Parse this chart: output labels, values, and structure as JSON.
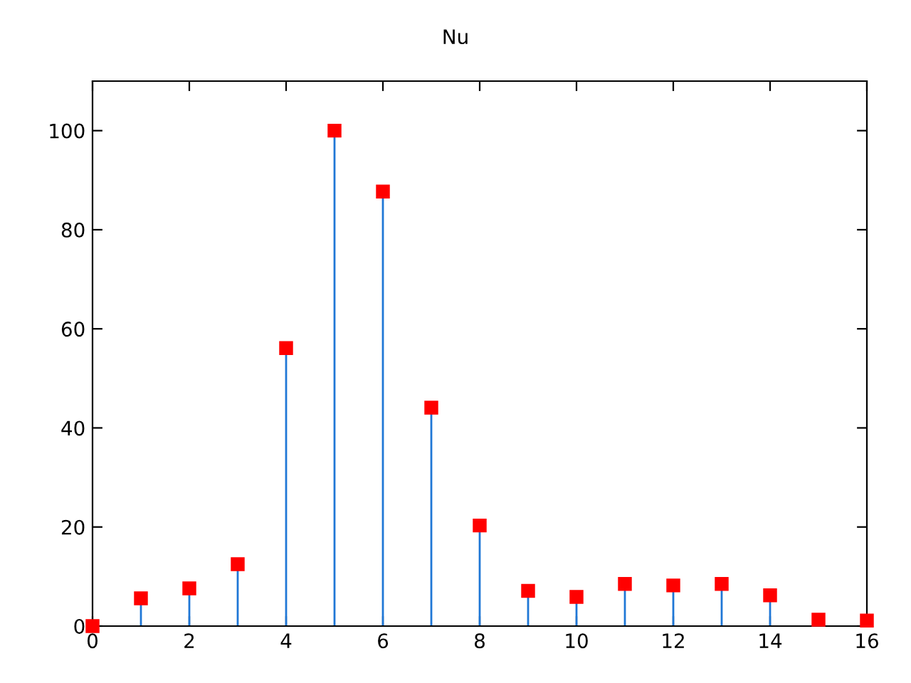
{
  "chart_data": {
    "type": "lollipop",
    "title": "Nu",
    "x": [
      0,
      1,
      2,
      3,
      4,
      5,
      6,
      7,
      8,
      9,
      10,
      11,
      12,
      13,
      14,
      15,
      16
    ],
    "series": [
      {
        "color": "#ff0000",
        "values": [
          0,
          5.6,
          7.6,
          12.5,
          56.1,
          100,
          87.7,
          44.1,
          20.3,
          7.1,
          5.9,
          8.5,
          8.2,
          8.5,
          6.2,
          1.3,
          1.1
        ]
      }
    ],
    "marker": "square",
    "xlim": [
      0,
      16
    ],
    "xticks": [
      0,
      2,
      4,
      6,
      8,
      10,
      12,
      14,
      16
    ],
    "ylim": [
      0,
      110
    ],
    "yticks": [
      0,
      20,
      40,
      60,
      80,
      100
    ],
    "grid": false,
    "legend": false
  }
}
